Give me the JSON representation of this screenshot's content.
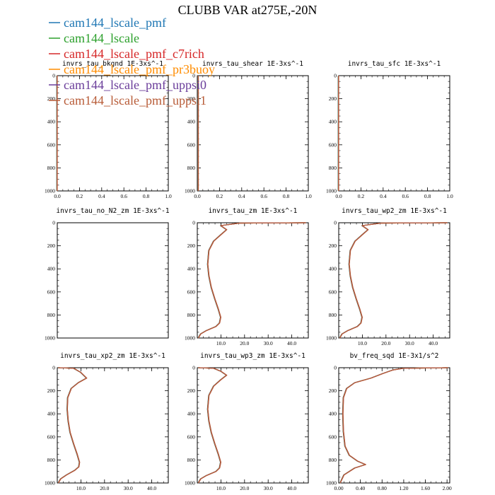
{
  "figure": {
    "title": "CLUBB VAR at275E,-20N"
  },
  "legend": [
    {
      "name": "cam144_lscale_pmf",
      "color": "#1f77b4"
    },
    {
      "name": "cam144_lscale",
      "color": "#2ca02c"
    },
    {
      "name": "cam144_lscale_pmf_c7rich",
      "color": "#d62728"
    },
    {
      "name": "cam144_lscale_pmf_pr3buoy",
      "color": "#ff8c00"
    },
    {
      "name": "cam144_lscale_pmf_uppsi0",
      "color": "#6a3d9a"
    },
    {
      "name": "cam144_lscale_pmf_uppsi1",
      "color": "#b85c38"
    }
  ],
  "chart_data": [
    {
      "type": "line",
      "title": "invrs_tau_bkgnd",
      "units": "1E-3xs^-1",
      "xlim": [
        0,
        1
      ],
      "ylim": [
        1000,
        0
      ],
      "xticks": [
        "0.0",
        "0.2",
        "0.4",
        "0.6",
        "0.8",
        "1.0"
      ],
      "xtick_values": [
        0,
        0.2,
        0.4,
        0.6,
        0.8,
        1.0
      ],
      "yticks": [
        "0",
        "200",
        "400",
        "600",
        "800",
        "1000"
      ],
      "ytick_values": [
        0,
        200,
        400,
        600,
        800,
        1000
      ],
      "x": [
        0,
        0,
        0,
        0,
        0
      ],
      "y": [
        0,
        250,
        500,
        750,
        1000
      ]
    },
    {
      "type": "line",
      "title": "invrs_tau_shear",
      "units": "1E-3xs^-1",
      "xlim": [
        0,
        1
      ],
      "ylim": [
        1000,
        0
      ],
      "xticks": [
        "0.0",
        "0.2",
        "0.4",
        "0.6",
        "0.8",
        "1.0"
      ],
      "xtick_values": [
        0,
        0.2,
        0.4,
        0.6,
        0.8,
        1.0
      ],
      "yticks": [
        "0",
        "200",
        "400",
        "600",
        "800",
        "1000"
      ],
      "ytick_values": [
        0,
        200,
        400,
        600,
        800,
        1000
      ],
      "x": [
        0.01,
        0.01,
        0.01,
        0.01,
        0.01,
        0.01
      ],
      "y": [
        0,
        100,
        300,
        500,
        800,
        1000
      ]
    },
    {
      "type": "line",
      "title": "invrs_tau_sfc",
      "units": "1E-3xs^-1",
      "xlim": [
        0,
        1
      ],
      "ylim": [
        1000,
        0
      ],
      "xticks": [
        "0.0",
        "0.2",
        "0.4",
        "0.6",
        "0.8",
        "1.0"
      ],
      "xtick_values": [
        0,
        0.2,
        0.4,
        0.6,
        0.8,
        1.0
      ],
      "yticks": [
        "0",
        "200",
        "400",
        "600",
        "800",
        "1000"
      ],
      "ytick_values": [
        0,
        200,
        400,
        600,
        800,
        1000
      ],
      "x": [
        0,
        0,
        0,
        0,
        0
      ],
      "y": [
        0,
        250,
        500,
        750,
        1000
      ]
    },
    {
      "type": "line",
      "title": "invrs_tau_no_N2_zm",
      "units": "1E-3xs^-1",
      "xlim": [
        0,
        1
      ],
      "ylim": [
        1000,
        0
      ],
      "xticks": [],
      "xtick_values": [],
      "yticks": [
        "0",
        "200",
        "400",
        "600",
        "800",
        "1000"
      ],
      "ytick_values": [
        0,
        200,
        400,
        600,
        800,
        1000
      ],
      "x": [],
      "y": []
    },
    {
      "type": "line",
      "title": "invrs_tau_zm",
      "units": "1E-3xs^-1",
      "xlim": [
        0,
        47
      ],
      "ylim": [
        1000,
        0
      ],
      "xticks": [
        "10.0",
        "20.0",
        "30.0",
        "40.0"
      ],
      "xtick_values": [
        10,
        20,
        30,
        40
      ],
      "yticks": [
        "0",
        "200",
        "400",
        "600",
        "800",
        "1000"
      ],
      "ytick_values": [
        0,
        200,
        400,
        600,
        800,
        1000
      ],
      "x": [
        46,
        18,
        10,
        12.5,
        10,
        7,
        5,
        4.5,
        5,
        6,
        7.5,
        9,
        10,
        9.5,
        8,
        4,
        1.5,
        0.5
      ],
      "y": [
        0,
        3,
        25,
        60,
        105,
        160,
        240,
        360,
        460,
        560,
        660,
        750,
        820,
        870,
        900,
        935,
        965,
        1000
      ]
    },
    {
      "type": "line",
      "title": "invrs_tau_wp2_zm",
      "units": "1E-3xs^-1",
      "xlim": [
        0,
        47
      ],
      "ylim": [
        1000,
        0
      ],
      "xticks": [
        "10.0",
        "20.0",
        "30.0",
        "40.0"
      ],
      "xtick_values": [
        10,
        20,
        30,
        40
      ],
      "yticks": [
        "0",
        "200",
        "400",
        "600",
        "800",
        "1000"
      ],
      "ytick_values": [
        0,
        200,
        400,
        600,
        800,
        1000
      ],
      "x": [
        46,
        18,
        10,
        12.5,
        10,
        7,
        5,
        4.5,
        5,
        6,
        7.5,
        9,
        10,
        9.5,
        8,
        4,
        1.5,
        0.5
      ],
      "y": [
        0,
        3,
        25,
        60,
        105,
        160,
        240,
        360,
        460,
        560,
        660,
        750,
        820,
        870,
        900,
        935,
        965,
        1000
      ]
    },
    {
      "type": "line",
      "title": "invrs_tau_xp2_zm",
      "units": "1E-3xs^-1",
      "xlim": [
        0,
        47
      ],
      "ylim": [
        1000,
        0
      ],
      "xticks": [
        "10.0",
        "20.0",
        "30.0",
        "40.0"
      ],
      "xtick_values": [
        10,
        20,
        30,
        40
      ],
      "yticks": [
        "0",
        "200",
        "400",
        "600",
        "800",
        "1000"
      ],
      "ytick_values": [
        0,
        200,
        400,
        600,
        800,
        1000
      ],
      "x": [
        0.5,
        7,
        10,
        12.5,
        9,
        6,
        4.5,
        4.3,
        4.7,
        5.5,
        7,
        8.5,
        9.5,
        9.2,
        7.5,
        4,
        1.5,
        0.5
      ],
      "y": [
        0,
        5,
        40,
        90,
        130,
        180,
        260,
        360,
        460,
        560,
        660,
        750,
        820,
        860,
        890,
        930,
        965,
        1000
      ]
    },
    {
      "type": "line",
      "title": "invrs_tau_wp3_zm",
      "units": "1E-3xs^-1",
      "xlim": [
        0,
        47
      ],
      "ylim": [
        1000,
        0
      ],
      "xticks": [
        "10.0",
        "20.0",
        "30.0",
        "40.0"
      ],
      "xtick_values": [
        10,
        20,
        30,
        40
      ],
      "yticks": [
        "0",
        "200",
        "400",
        "600",
        "800",
        "1000"
      ],
      "ytick_values": [
        0,
        200,
        400,
        600,
        800,
        1000
      ],
      "x": [
        0.5,
        7,
        10,
        12.5,
        10,
        7,
        5,
        4.5,
        5,
        6,
        7.5,
        9,
        10,
        9.5,
        8,
        4,
        1.5,
        0.5
      ],
      "y": [
        0,
        5,
        30,
        65,
        105,
        160,
        240,
        360,
        460,
        560,
        660,
        750,
        820,
        870,
        900,
        935,
        965,
        1000
      ]
    },
    {
      "type": "line",
      "title": "bv_freq_sqd",
      "units": "1E-3x1/s^2",
      "xlim": [
        0,
        2.05
      ],
      "ylim": [
        1000,
        0
      ],
      "xticks": [
        "0.00",
        "0.40",
        "0.80",
        "1.20",
        "1.60",
        "2.00"
      ],
      "xtick_values": [
        0,
        0.4,
        0.8,
        1.2,
        1.6,
        2.0
      ],
      "yticks": [
        "0",
        "200",
        "400",
        "600",
        "800",
        "1000"
      ],
      "ytick_values": [
        0,
        200,
        400,
        600,
        800,
        1000
      ],
      "x": [
        2.02,
        1.5,
        1.2,
        1.0,
        0.82,
        0.6,
        0.3,
        0.15,
        0.09,
        0.08,
        0.09,
        0.12,
        0.2,
        0.35,
        0.5,
        0.3,
        0.1,
        0.03
      ],
      "y": [
        0,
        3,
        5,
        20,
        50,
        90,
        130,
        180,
        260,
        400,
        550,
        680,
        760,
        810,
        840,
        870,
        930,
        1000
      ]
    }
  ]
}
